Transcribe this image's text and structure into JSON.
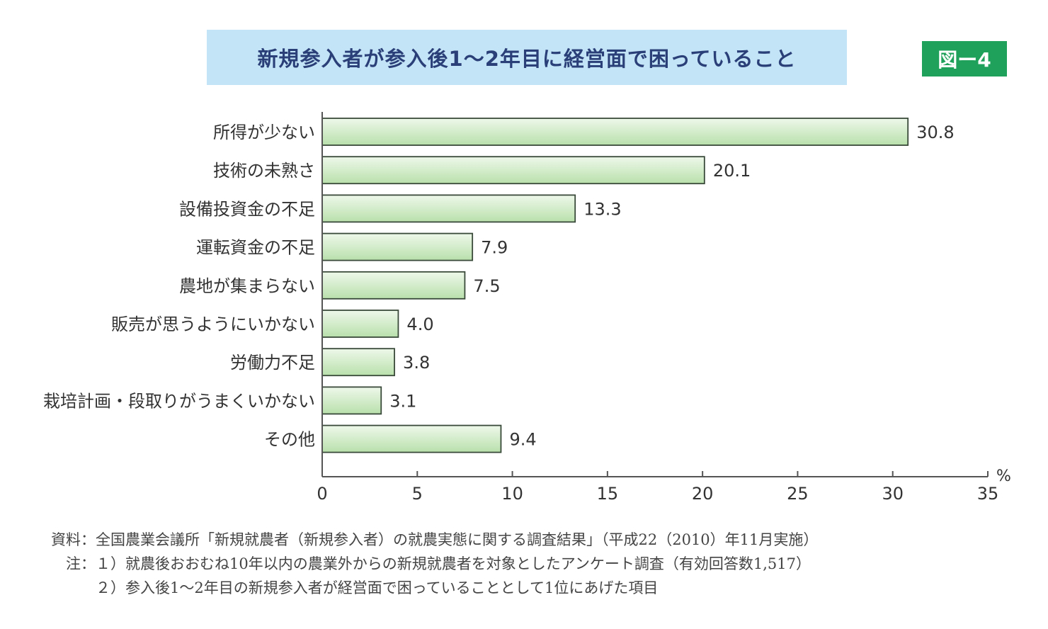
{
  "title": "新規参入者が参入後1〜2年目に経営面で困っていること",
  "figure_label": "図ー4",
  "colors": {
    "title_bg": "#c3e4f6",
    "title_text": "#2a3f78",
    "badge_bg": "#1fa15b",
    "bar_fill_light": "#eef8ea",
    "bar_fill_dark": "#b9e0ac",
    "bar_stroke": "#3a4a3a"
  },
  "chart_data": {
    "type": "bar",
    "orientation": "horizontal",
    "categories": [
      "所得が少ない",
      "技術の未熟さ",
      "設備投資金の不足",
      "運転資金の不足",
      "農地が集まらない",
      "販売が思うようにいかない",
      "労働力不足",
      "栽培計画・段取りがうまくいかない",
      "その他"
    ],
    "values": [
      30.8,
      20.1,
      13.3,
      7.9,
      7.5,
      4.0,
      3.8,
      3.1,
      9.4
    ],
    "value_labels": [
      "30.8",
      "20.1",
      "13.3",
      "7.9",
      "7.5",
      "4.0",
      "3.8",
      "3.1",
      "9.4"
    ],
    "xlim": [
      0,
      35
    ],
    "xticks": [
      0,
      5,
      10,
      15,
      20,
      25,
      30,
      35
    ],
    "xtick_labels": [
      "0",
      "5",
      "10",
      "15",
      "20",
      "25",
      "30",
      "35"
    ],
    "xlabel": "%",
    "grid": false,
    "legend": "none"
  },
  "notes": [
    "資料：全国農業会議所「新規就農者（新規参入者）の就農実態に関する調査結果」（平成22（2010）年11月実施）",
    "　注：１）就農後おおむね10年以内の農業外からの新規就農者を対象としたアンケート調査（有効回答数1,517）",
    "　　　２）参入後1〜2年目の新規参入者が経営面で困っていることとして1位にあげた項目"
  ]
}
